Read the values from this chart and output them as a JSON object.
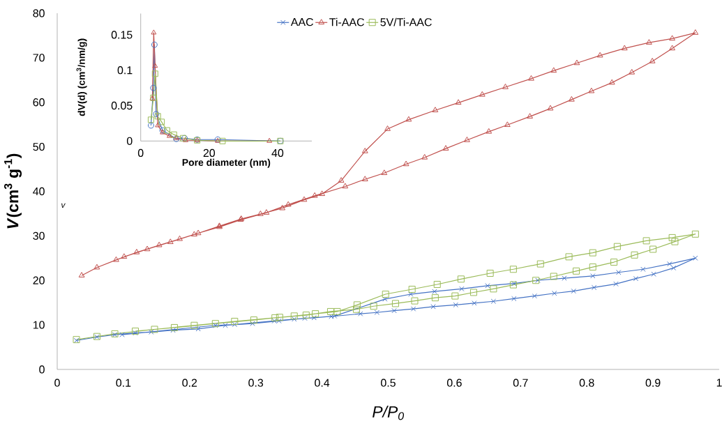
{
  "chart_data": [
    {
      "type": "line",
      "xlabel": "P/P$_{0}$",
      "ylabel": "*V*(cm$^{3}$ g$^{-1}$)",
      "xlim": [
        0,
        1
      ],
      "ylim": [
        0,
        80
      ],
      "xticks": [
        0,
        0.1,
        0.2,
        0.3,
        0.4,
        0.5,
        0.6,
        0.7,
        0.8,
        0.9,
        1
      ],
      "yticks": [
        0,
        10,
        20,
        30,
        40,
        50,
        60,
        70,
        80
      ],
      "grid": false,
      "legend": "top",
      "annotations": [
        "v"
      ],
      "series": [
        {
          "name": "AAC",
          "color": "#4472c4",
          "marker": "cross",
          "x": [
            0.029,
            0.06,
            0.087,
            0.118,
            0.142,
            0.175,
            0.213,
            0.254,
            0.295,
            0.335,
            0.374,
            0.414,
            0.458,
            0.483,
            0.509,
            0.538,
            0.568,
            0.602,
            0.63,
            0.659,
            0.69,
            0.721,
            0.751,
            0.78,
            0.811,
            0.844,
            0.874,
            0.901,
            0.931,
            0.964,
            0.925,
            0.885,
            0.848,
            0.809,
            0.766,
            0.726,
            0.69,
            0.65,
            0.611,
            0.57,
            0.534,
            0.495,
            0.419,
            0.388,
            0.358,
            0.328,
            0.268,
            0.239,
            0.098
          ],
          "values": [
            6.5,
            7.3,
            7.8,
            8.2,
            8.4,
            8.8,
            9.1,
            9.9,
            10.3,
            10.9,
            11.5,
            11.9,
            12.5,
            12.8,
            13.2,
            13.6,
            14.1,
            14.5,
            14.9,
            15.3,
            15.9,
            16.5,
            17.1,
            17.6,
            18.4,
            19.2,
            20.4,
            21.4,
            22.8,
            25.0,
            23.7,
            22.5,
            21.8,
            21.0,
            20.5,
            20.0,
            19.3,
            18.8,
            18.1,
            17.5,
            16.9,
            15.8,
            12.0,
            11.6,
            11.3,
            10.9,
            10.1,
            9.9,
            7.8
          ]
        },
        {
          "name": "Ti-AAC",
          "color": "#c0504d",
          "marker": "triangle",
          "x": [
            0.037,
            0.06,
            0.089,
            0.12,
            0.154,
            0.185,
            0.213,
            0.245,
            0.277,
            0.316,
            0.349,
            0.389,
            0.435,
            0.465,
            0.494,
            0.527,
            0.555,
            0.587,
            0.619,
            0.652,
            0.68,
            0.714,
            0.745,
            0.777,
            0.807,
            0.838,
            0.868,
            0.899,
            0.929,
            0.964,
            0.929,
            0.894,
            0.857,
            0.82,
            0.785,
            0.75,
            0.716,
            0.677,
            0.642,
            0.606,
            0.571,
            0.531,
            0.499,
            0.465,
            0.429,
            0.4,
            0.373,
            0.34,
            0.307,
            0.278,
            0.245,
            0.207,
            0.171,
            0.136,
            0.101
          ],
          "values": [
            21.1,
            22.9,
            24.6,
            26.3,
            27.9,
            29.3,
            30.6,
            32.0,
            33.6,
            35.2,
            37.0,
            39.0,
            41.1,
            42.7,
            44.1,
            46.1,
            47.6,
            49.6,
            51.5,
            53.4,
            54.9,
            56.8,
            58.6,
            60.6,
            62.5,
            64.4,
            66.7,
            69.2,
            72.1,
            75.6,
            74.3,
            73.4,
            72.1,
            70.5,
            68.8,
            67.1,
            65.3,
            63.4,
            61.7,
            59.9,
            58.2,
            56.1,
            54.0,
            49.0,
            42.4,
            39.4,
            38.1,
            36.2,
            34.9,
            33.8,
            32.2,
            30.3,
            28.6,
            27.0,
            25.3
          ]
        },
        {
          "name": "5V/Ti-AAC",
          "color": "#9bbb59",
          "marker": "square",
          "x": [
            0.029,
            0.06,
            0.087,
            0.147,
            0.207,
            0.268,
            0.329,
            0.376,
            0.413,
            0.452,
            0.478,
            0.511,
            0.54,
            0.571,
            0.601,
            0.629,
            0.659,
            0.689,
            0.723,
            0.75,
            0.784,
            0.809,
            0.841,
            0.872,
            0.9,
            0.933,
            0.964,
            0.929,
            0.89,
            0.846,
            0.809,
            0.773,
            0.73,
            0.689,
            0.654,
            0.61,
            0.574,
            0.536,
            0.496,
            0.453,
            0.423,
            0.39,
            0.358,
            0.336,
            0.297,
            0.239,
            0.177,
            0.118
          ],
          "values": [
            6.7,
            7.4,
            8.0,
            9.0,
            9.9,
            10.8,
            11.6,
            12.2,
            13.0,
            13.5,
            14.2,
            14.8,
            15.4,
            16.1,
            16.5,
            17.3,
            18.1,
            19.0,
            20.0,
            20.9,
            22.1,
            23.0,
            24.1,
            25.7,
            27.0,
            28.7,
            30.4,
            29.6,
            28.9,
            27.6,
            26.2,
            25.3,
            23.7,
            22.5,
            21.6,
            20.3,
            19.1,
            18.0,
            16.9,
            14.5,
            13.0,
            12.5,
            12.0,
            11.7,
            11.1,
            10.3,
            9.4,
            8.6
          ]
        }
      ]
    },
    {
      "type": "line",
      "xlabel": "Pore diameter (nm)",
      "ylabel": "dV(d) (cm$^{3}$/nm/g)",
      "xlim": [
        0,
        50
      ],
      "ylim": [
        0,
        0.18
      ],
      "xticks": [
        0,
        20,
        40
      ],
      "yticks": [
        0,
        0.05,
        0.1,
        0.15
      ],
      "grid": false,
      "series": [
        {
          "color": "#4472c4",
          "marker": "circle",
          "x": [
            3.0,
            3.7,
            4.0,
            4.5,
            6.4,
            10.4,
            12.8,
            16.5,
            22.5,
            40.8
          ],
          "values": [
            0.022,
            0.075,
            0.136,
            0.038,
            0.015,
            0.003,
            0.004,
            0.002,
            0.002,
            0
          ]
        },
        {
          "color": "#c0504d",
          "marker": "triangle",
          "x": [
            3.4,
            3.8,
            4.2,
            5.0,
            6.4,
            8.4,
            10.4,
            13.1,
            16.5,
            22.5,
            37.6
          ],
          "values": [
            0.06,
            0.153,
            0.106,
            0.022,
            0.012,
            0.007,
            0.004,
            0.001,
            0.001,
            0,
            0
          ]
        },
        {
          "color": "#9bbb59",
          "marker": "square",
          "x": [
            3.0,
            3.7,
            4.2,
            5.0,
            6.1,
            7.7,
            9.7,
            12.4,
            16.5,
            23.9,
            40.8
          ],
          "values": [
            0.03,
            0.061,
            0.095,
            0.035,
            0.027,
            0.015,
            0.009,
            0.004,
            0.001,
            0,
            0
          ]
        }
      ]
    }
  ]
}
